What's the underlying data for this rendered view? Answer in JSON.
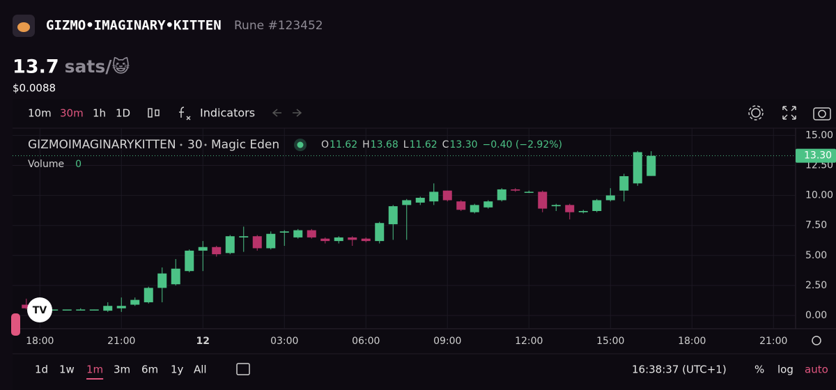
{
  "header": {
    "title": "GIZMO•IMAGINARY•KITTEN",
    "subtitle": "Rune #123452",
    "price": "13.7",
    "unit": "sats/😺",
    "usd": "$0.0088"
  },
  "toolbar": {
    "intervals": [
      "10m",
      "30m",
      "1h",
      "1D"
    ],
    "active_interval": 1,
    "indicators": "Indicators"
  },
  "chart_data": {
    "type": "candlestick",
    "categories": [
      null,
      "18:00",
      null,
      null,
      null,
      null,
      null,
      "21:00",
      null,
      null,
      null,
      null,
      null,
      "12",
      null,
      null,
      null,
      null,
      null,
      "03:00",
      null,
      null,
      null,
      null,
      null,
      "06:00",
      null,
      null,
      null,
      null,
      null,
      "09:00",
      null,
      null,
      null,
      null,
      null,
      "12:00",
      null,
      null,
      null,
      null,
      null,
      "15:00",
      null,
      null,
      null,
      null,
      null,
      "18:00",
      null,
      null,
      null,
      null,
      null,
      "21:00"
    ],
    "open": [
      0.9,
      0.6,
      0.5,
      0.5,
      0.5,
      0.5,
      0.4,
      0.6,
      0.9,
      1.1,
      2.3,
      2.6,
      3.7,
      5.4,
      5.7,
      5.2,
      6.5,
      6.6,
      5.6,
      6.9,
      6.5,
      7.1,
      6.4,
      6.2,
      6.5,
      6.4,
      6.2,
      7.6,
      9.2,
      9.4,
      9.5,
      10.4,
      9.5,
      8.6,
      9.0,
      9.6,
      10.5,
      10.3,
      10.3,
      9.1,
      9.2,
      8.6,
      8.7,
      9.6,
      10.4,
      11.0,
      11.62,
      null,
      null,
      null,
      null,
      null,
      null,
      null,
      null,
      null
    ],
    "high": [
      1.4,
      0.6,
      0.5,
      0.5,
      0.6,
      0.5,
      1.1,
      1.5,
      1.5,
      2.4,
      4.0,
      4.7,
      5.5,
      6.2,
      5.8,
      6.7,
      7.4,
      6.7,
      7.0,
      7.1,
      7.2,
      7.2,
      6.5,
      6.6,
      6.6,
      6.5,
      7.8,
      9.2,
      9.7,
      9.9,
      11.0,
      10.4,
      9.6,
      9.3,
      9.6,
      10.6,
      10.6,
      10.4,
      10.4,
      9.3,
      9.3,
      8.8,
      9.7,
      10.6,
      11.8,
      13.7,
      13.68,
      null,
      null,
      null,
      null,
      null,
      null,
      null,
      null,
      null
    ],
    "low": [
      0.5,
      0.5,
      0.5,
      0.5,
      0.5,
      0.45,
      0.3,
      0.3,
      0.8,
      1.0,
      1.1,
      2.5,
      3.6,
      3.7,
      4.9,
      5.1,
      5.3,
      5.4,
      5.5,
      5.8,
      6.4,
      6.4,
      6.0,
      6.0,
      5.8,
      6.1,
      6.0,
      6.3,
      6.3,
      9.2,
      9.2,
      9.5,
      8.7,
      8.5,
      8.9,
      9.5,
      10.3,
      10.2,
      8.6,
      8.7,
      8.0,
      8.5,
      8.6,
      9.5,
      9.5,
      10.8,
      11.62,
      null,
      null,
      null,
      null,
      null,
      null,
      null,
      null,
      null
    ],
    "close": [
      0.6,
      0.5,
      0.5,
      0.5,
      0.5,
      0.5,
      0.8,
      0.8,
      1.3,
      2.3,
      3.5,
      3.9,
      5.4,
      5.7,
      5.1,
      6.6,
      6.6,
      5.6,
      6.8,
      7.0,
      7.1,
      6.5,
      6.2,
      6.5,
      6.3,
      6.2,
      7.7,
      9.1,
      9.6,
      9.8,
      10.3,
      9.6,
      8.8,
      9.2,
      9.5,
      10.5,
      10.4,
      10.3,
      8.9,
      9.2,
      8.6,
      8.7,
      9.6,
      10.0,
      11.6,
      13.6,
      13.3,
      null,
      null,
      null,
      null,
      null,
      null,
      null,
      null,
      null
    ],
    "up_color": "#4cc286",
    "down_color": "#b8336a",
    "ylim": [
      -1.1,
      15.6
    ],
    "yticks": [
      {
        "value": 0,
        "label": "0.00"
      },
      {
        "value": 2.5,
        "label": "2.50"
      },
      {
        "value": 5,
        "label": "5.00"
      },
      {
        "value": 7.5,
        "label": "7.50"
      },
      {
        "value": 10,
        "label": "10.00"
      },
      {
        "value": 12.5,
        "label": "12.50"
      },
      {
        "value": 15,
        "label": "15.00"
      }
    ],
    "grid": true,
    "last_price": {
      "value": 13.3,
      "label": "13.30"
    },
    "legend": {
      "symbol": "GIZMOIMAGINARYKITTEN",
      "interval": "30",
      "exchange": "Magic Eden",
      "ohlc": [
        {
          "key": "O",
          "value": "11.62"
        },
        {
          "key": "H",
          "value": "13.68"
        },
        {
          "key": "L",
          "value": "11.62"
        },
        {
          "key": "C",
          "value": "13.30"
        }
      ],
      "change": "−0.40 (−2.92%)",
      "volume_label": "Volume",
      "volume_value": "0"
    }
  },
  "footer": {
    "ranges": [
      "1d",
      "1w",
      "1m",
      "3m",
      "6m",
      "1y",
      "All"
    ],
    "active_range": 2,
    "time": "16:38:37 (UTC+1)",
    "percent": "%",
    "log": "log",
    "auto": "auto"
  }
}
